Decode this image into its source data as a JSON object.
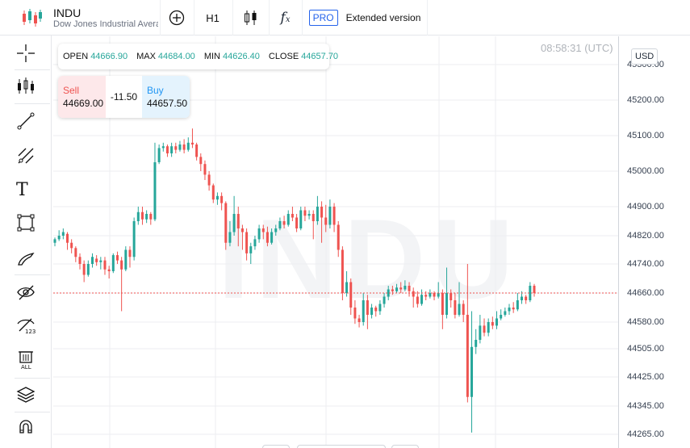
{
  "symbol": {
    "name": "INDU",
    "description": "Dow Jones Industrial Average"
  },
  "toolbar": {
    "timeframe": "H1",
    "pro_badge": "PRO",
    "extended_label": "Extended version"
  },
  "left_tools": [
    "crosshair-icon",
    "candles-icon",
    "trendline-icon",
    "fibonacci-icon",
    "text-icon",
    "rectangle-icon",
    "brush-icon",
    "hide-drawings-icon",
    "hide-labels-icon",
    "delete-all-icon",
    "layers-icon",
    "magnet-icon"
  ],
  "ohlc": {
    "open_label": "OPEN",
    "open": "44666.90",
    "max_label": "MAX",
    "max": "44684.00",
    "min_label": "MIN",
    "min": "44626.40",
    "close_label": "CLOSE",
    "close": "44657.70"
  },
  "trade": {
    "sell_label": "Sell",
    "sell_value": "44669.00",
    "spread": "-11.50",
    "buy_label": "Buy",
    "buy_value": "44657.50"
  },
  "timestamp": "08:58:31 (UTC)",
  "currency": "USD",
  "watermark": "INDU",
  "colors": {
    "up": "#26a69a",
    "down": "#ef5350",
    "accent": "#2563eb",
    "current_line": "#ef5350"
  },
  "chart_data": {
    "type": "candlestick",
    "y_ticks": [
      "45300.00",
      "45200.00",
      "45100.00",
      "45000.00",
      "44900.00",
      "44820.00",
      "44740.00",
      "44660.00",
      "44580.00",
      "44505.00",
      "44425.00",
      "44345.00",
      "44265.00"
    ],
    "ylim": [
      44260,
      45320
    ],
    "current_price": 44660,
    "grid": true,
    "candles": [
      [
        44800,
        44810,
        44790,
        44815
      ],
      [
        44810,
        44820,
        44805,
        44835
      ],
      [
        44820,
        44830,
        44810,
        44840
      ],
      [
        44825,
        44800,
        44780,
        44830
      ],
      [
        44800,
        44785,
        44770,
        44810
      ],
      [
        44785,
        44760,
        44745,
        44790
      ],
      [
        44760,
        44740,
        44725,
        44770
      ],
      [
        44740,
        44710,
        44690,
        44750
      ],
      [
        44710,
        44740,
        44705,
        44750
      ],
      [
        44740,
        44760,
        44730,
        44770
      ],
      [
        44755,
        44745,
        44735,
        44765
      ],
      [
        44745,
        44750,
        44725,
        44760
      ],
      [
        44750,
        44725,
        44710,
        44760
      ],
      [
        44725,
        44720,
        44700,
        44735
      ],
      [
        44720,
        44765,
        44715,
        44770
      ],
      [
        44765,
        44750,
        44740,
        44775
      ],
      [
        44750,
        44725,
        44610,
        44760
      ],
      [
        44725,
        44780,
        44720,
        44790
      ],
      [
        44780,
        44760,
        44730,
        44790
      ],
      [
        44760,
        44860,
        44750,
        44870
      ],
      [
        44860,
        44885,
        44850,
        44900
      ],
      [
        44885,
        44865,
        44850,
        44900
      ],
      [
        44865,
        44880,
        44855,
        44890
      ],
      [
        44880,
        44865,
        44850,
        44885
      ],
      [
        44865,
        45025,
        44860,
        45080
      ],
      [
        45025,
        45065,
        45020,
        45075
      ],
      [
        45065,
        45070,
        45055,
        45080
      ],
      [
        45070,
        45050,
        45040,
        45075
      ],
      [
        45050,
        45070,
        45040,
        45080
      ],
      [
        45070,
        45060,
        45050,
        45080
      ],
      [
        45060,
        45075,
        45055,
        45085
      ],
      [
        45075,
        45060,
        45050,
        45090
      ],
      [
        45060,
        45080,
        45055,
        45095
      ],
      [
        45080,
        45075,
        45065,
        45120
      ],
      [
        45075,
        45040,
        45030,
        45080
      ],
      [
        45040,
        45020,
        45000,
        45050
      ],
      [
        45020,
        44990,
        44975,
        45030
      ],
      [
        44990,
        44960,
        44945,
        45000
      ],
      [
        44960,
        44920,
        44910,
        44965
      ],
      [
        44920,
        44930,
        44905,
        44940
      ],
      [
        44930,
        44910,
        44890,
        44940
      ],
      [
        44910,
        44800,
        44780,
        44915
      ],
      [
        44800,
        44830,
        44790,
        44860
      ],
      [
        44830,
        44880,
        44820,
        44930
      ],
      [
        44880,
        44840,
        44790,
        44900
      ],
      [
        44840,
        44830,
        44780,
        44850
      ],
      [
        44830,
        44770,
        44750,
        44840
      ],
      [
        44770,
        44790,
        44740,
        44800
      ],
      [
        44790,
        44810,
        44780,
        44820
      ],
      [
        44810,
        44840,
        44800,
        44850
      ],
      [
        44840,
        44830,
        44810,
        44850
      ],
      [
        44830,
        44800,
        44790,
        44845
      ],
      [
        44800,
        44830,
        44795,
        44840
      ],
      [
        44830,
        44840,
        44820,
        44850
      ],
      [
        44840,
        44860,
        44835,
        44870
      ],
      [
        44860,
        44850,
        44840,
        44875
      ],
      [
        44850,
        44880,
        44845,
        44890
      ],
      [
        44880,
        44870,
        44860,
        44900
      ],
      [
        44870,
        44840,
        44830,
        44880
      ],
      [
        44840,
        44890,
        44835,
        44900
      ],
      [
        44890,
        44875,
        44860,
        44900
      ],
      [
        44875,
        44880,
        44865,
        44890
      ],
      [
        44880,
        44860,
        44810,
        44890
      ],
      [
        44860,
        44900,
        44850,
        44930
      ],
      [
        44900,
        44870,
        44800,
        44915
      ],
      [
        44870,
        44850,
        44830,
        44905
      ],
      [
        44850,
        44900,
        44840,
        44920
      ],
      [
        44900,
        44850,
        44830,
        44910
      ],
      [
        44850,
        44780,
        44760,
        44860
      ],
      [
        44780,
        44660,
        44640,
        44790
      ],
      [
        44660,
        44690,
        44650,
        44720
      ],
      [
        44690,
        44620,
        44600,
        44700
      ],
      [
        44620,
        44590,
        44575,
        44640
      ],
      [
        44590,
        44580,
        44565,
        44600
      ],
      [
        44580,
        44640,
        44570,
        44660
      ],
      [
        44640,
        44600,
        44560,
        44655
      ],
      [
        44600,
        44620,
        44590,
        44630
      ],
      [
        44620,
        44610,
        44595,
        44625
      ],
      [
        44610,
        44630,
        44600,
        44640
      ],
      [
        44630,
        44650,
        44620,
        44660
      ],
      [
        44650,
        44670,
        44640,
        44680
      ],
      [
        44670,
        44665,
        44655,
        44680
      ],
      [
        44665,
        44675,
        44660,
        44685
      ],
      [
        44675,
        44670,
        44660,
        44690
      ],
      [
        44670,
        44680,
        44665,
        44695
      ],
      [
        44680,
        44665,
        44650,
        44690
      ],
      [
        44665,
        44650,
        44620,
        44675
      ],
      [
        44650,
        44630,
        44620,
        44665
      ],
      [
        44630,
        44655,
        44625,
        44670
      ],
      [
        44655,
        44650,
        44640,
        44665
      ],
      [
        44650,
        44660,
        44645,
        44670
      ],
      [
        44660,
        44650,
        44640,
        44665
      ],
      [
        44650,
        44660,
        44645,
        44690
      ],
      [
        44660,
        44600,
        44560,
        44670
      ],
      [
        44600,
        44660,
        44590,
        44730
      ],
      [
        44660,
        44640,
        44620,
        44670
      ],
      [
        44640,
        44600,
        44590,
        44660
      ],
      [
        44600,
        44630,
        44595,
        44690
      ],
      [
        44630,
        44600,
        44580,
        44640
      ],
      [
        44600,
        44370,
        44355,
        44740
      ],
      [
        44370,
        44510,
        44270,
        44610
      ],
      [
        44510,
        44530,
        44490,
        44560
      ],
      [
        44530,
        44570,
        44520,
        44600
      ],
      [
        44570,
        44550,
        44540,
        44590
      ],
      [
        44550,
        44580,
        44540,
        44590
      ],
      [
        44580,
        44570,
        44560,
        44595
      ],
      [
        44570,
        44590,
        44560,
        44610
      ],
      [
        44590,
        44600,
        44585,
        44615
      ],
      [
        44600,
        44610,
        44595,
        44620
      ],
      [
        44610,
        44620,
        44600,
        44630
      ],
      [
        44620,
        44615,
        44605,
        44635
      ],
      [
        44615,
        44640,
        44610,
        44660
      ],
      [
        44640,
        44650,
        44630,
        44665
      ],
      [
        44650,
        44640,
        44630,
        44655
      ],
      [
        44640,
        44680,
        44635,
        44690
      ],
      [
        44680,
        44660,
        44650,
        44685
      ]
    ]
  }
}
